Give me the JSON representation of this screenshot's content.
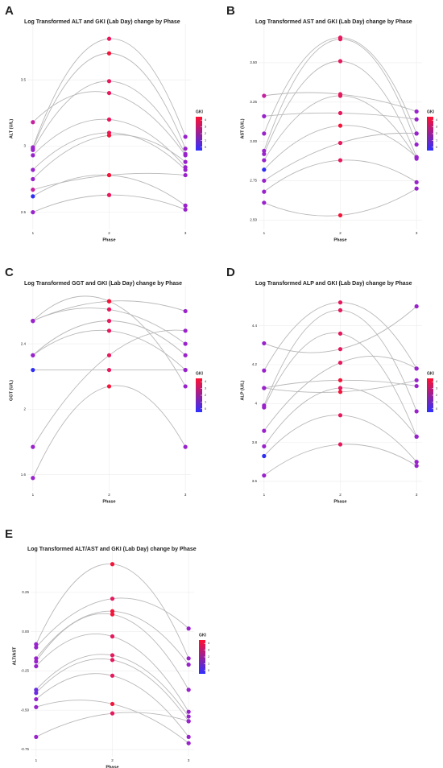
{
  "chart_data": [
    {
      "type": "line",
      "panel": "A",
      "title": "Log Transformed ALT and GKI (Lab Day) change by Phase",
      "x_label": "Phase",
      "y_label": "ALT (U/L)",
      "x": [
        1,
        2,
        3
      ],
      "xlim": [
        0.97,
        3.03
      ],
      "xticks": [
        1,
        2,
        3
      ],
      "ylim": [
        2.37,
        3.89
      ],
      "yticks": [
        2.5,
        3.0,
        3.5
      ],
      "grid": true,
      "colorbar": {
        "title": "GKI",
        "ticks": [
          0,
          1,
          2,
          3,
          4
        ],
        "lim": [
          -0.5,
          4.5
        ],
        "colors": [
          "#3030ff",
          "#ff1030"
        ]
      },
      "series": [
        {
          "values": [
            3.18,
            3.4,
            2.93
          ],
          "colors": [
            "#c61fa0",
            "#e8185e",
            "#9a22cc"
          ]
        },
        {
          "values": [
            2.99,
            3.81,
            3.07
          ],
          "colors": [
            "#9a22cc",
            "#e8185e",
            "#9a22cc"
          ]
        },
        {
          "values": [
            2.98,
            3.7,
            2.98
          ],
          "colors": [
            "#9a22cc",
            "#f5143a",
            "#9a22cc"
          ]
        },
        {
          "values": [
            2.97,
            3.49,
            2.94
          ],
          "colors": [
            "#9a22cc",
            "#e8185e",
            "#9a22cc"
          ]
        },
        {
          "values": [
            2.93,
            3.2,
            2.84
          ],
          "colors": [
            "#9a22cc",
            "#e8185e",
            "#9a22cc"
          ]
        },
        {
          "values": [
            2.82,
            3.1,
            2.82
          ],
          "colors": [
            "#9a22cc",
            "#e8185e",
            "#9a22cc"
          ]
        },
        {
          "values": [
            2.75,
            3.08,
            2.88
          ],
          "colors": [
            "#9a22cc",
            "#f5143a",
            "#9a22cc"
          ]
        },
        {
          "values": [
            2.67,
            2.78,
            2.78
          ],
          "colors": [
            "#c61fa0",
            "#f5143a",
            "#9a22cc"
          ]
        },
        {
          "values": [
            2.62,
            2.78,
            2.55
          ],
          "colors": [
            "#2e2ef5",
            "#f5143a",
            "#9a22cc"
          ]
        },
        {
          "values": [
            2.5,
            2.63,
            2.52
          ],
          "colors": [
            "#9a22cc",
            "#e8185e",
            "#9a22cc"
          ]
        }
      ]
    },
    {
      "type": "line",
      "panel": "B",
      "title": "Log Transformed AST and GKI (Lab Day) change by Phase",
      "x_label": "Phase",
      "y_label": "AST (U/L)",
      "x": [
        1,
        2,
        3
      ],
      "xlim": [
        0.97,
        3.03
      ],
      "xticks": [
        1,
        2,
        3
      ],
      "ylim": [
        2.44,
        3.72
      ],
      "yticks": [
        {
          "value": 2.5,
          "label": "2.50"
        },
        2.75,
        {
          "value": 3.0,
          "label": "3.00"
        },
        3.25,
        {
          "value": 3.5,
          "label": "3.50"
        }
      ],
      "grid": true,
      "colorbar": {
        "title": "GKI",
        "ticks": [
          0,
          1,
          2,
          3,
          4
        ],
        "lim": [
          -0.5,
          4.5
        ],
        "colors": [
          "#3030ff",
          "#ff1030"
        ]
      },
      "series": [
        {
          "values": [
            3.29,
            3.3,
            3.19
          ],
          "colors": [
            "#c61fa0",
            "#e8185e",
            "#9a22cc"
          ]
        },
        {
          "values": [
            3.16,
            3.18,
            3.14
          ],
          "colors": [
            "#9a22cc",
            "#e8185e",
            "#9a22cc"
          ]
        },
        {
          "values": [
            3.05,
            3.66,
            3.05
          ],
          "colors": [
            "#9a22cc",
            "#e8185e",
            "#9a22cc"
          ]
        },
        {
          "values": [
            2.94,
            3.65,
            2.98
          ],
          "colors": [
            "#9a22cc",
            "#e8185e",
            "#9a22cc"
          ]
        },
        {
          "values": [
            2.92,
            3.51,
            2.9
          ],
          "colors": [
            "#9a22cc",
            "#e8185e",
            "#9a22cc"
          ]
        },
        {
          "values": [
            2.88,
            3.29,
            2.89
          ],
          "colors": [
            "#9a22cc",
            "#e8185e",
            "#9a22cc"
          ]
        },
        {
          "values": [
            2.82,
            3.1,
            2.9
          ],
          "colors": [
            "#2e2ef5",
            "#f5143a",
            "#9a22cc"
          ]
        },
        {
          "values": [
            2.75,
            2.99,
            3.05
          ],
          "colors": [
            "#9a22cc",
            "#e8185e",
            "#9a22cc"
          ]
        },
        {
          "values": [
            2.68,
            2.88,
            2.74
          ],
          "colors": [
            "#9a22cc",
            "#e8185e",
            "#9a22cc"
          ]
        },
        {
          "values": [
            2.61,
            2.53,
            2.7
          ],
          "colors": [
            "#9a22cc",
            "#f5143a",
            "#9a22cc"
          ]
        }
      ]
    },
    {
      "type": "line",
      "panel": "C",
      "title": "Log Transformed GGT and GKI (Lab Day) change by Phase",
      "x_label": "Phase",
      "y_label": "GGT (U/L)",
      "x": [
        1,
        2,
        3
      ],
      "xlim": [
        0.97,
        3.03
      ],
      "xticks": [
        1,
        2,
        3
      ],
      "ylim": [
        1.5,
        2.73
      ],
      "yticks": [
        1.6,
        2.0,
        2.4
      ],
      "grid": true,
      "colorbar": {
        "title": "GKI",
        "ticks": [
          0,
          1,
          2,
          3,
          4
        ],
        "lim": [
          -0.5,
          4.5
        ],
        "colors": [
          "#3030ff",
          "#ff1030"
        ]
      },
      "series": [
        {
          "values": [
            2.54,
            2.66,
            2.6
          ],
          "colors": [
            "#9a22cc",
            "#f5143a",
            "#9a22cc"
          ]
        },
        {
          "values": [
            2.54,
            2.61,
            2.4
          ],
          "colors": [
            "#9a22cc",
            "#e8185e",
            "#9a22cc"
          ]
        },
        {
          "values": [
            2.54,
            2.66,
            2.14
          ],
          "colors": [
            "#9a22cc",
            "#f5143a",
            "#9a22cc"
          ]
        },
        {
          "values": [
            2.33,
            2.54,
            2.33
          ],
          "colors": [
            "#9a22cc",
            "#e8185e",
            "#9a22cc"
          ]
        },
        {
          "values": [
            2.33,
            2.48,
            2.24
          ],
          "colors": [
            "#9a22cc",
            "#e8185e",
            "#9a22cc"
          ]
        },
        {
          "values": [
            2.24,
            2.24,
            2.24
          ],
          "colors": [
            "#2e2ef5",
            "#e8185e",
            "#9a22cc"
          ]
        },
        {
          "values": [
            1.77,
            2.33,
            2.48
          ],
          "colors": [
            "#9a22cc",
            "#e8185e",
            "#9a22cc"
          ]
        },
        {
          "values": [
            1.58,
            2.14,
            1.77
          ],
          "colors": [
            "#9a22cc",
            "#f5143a",
            "#9a22cc"
          ]
        }
      ]
    },
    {
      "type": "line",
      "panel": "D",
      "title": "Log Transformed ALP and GKI (Lab Day) change by Phase",
      "x_label": "Phase",
      "y_label": "ALP (U/L)",
      "x": [
        1,
        2,
        3
      ],
      "xlim": [
        0.97,
        3.03
      ],
      "xticks": [
        1,
        2,
        3
      ],
      "ylim": [
        3.55,
        4.585
      ],
      "yticks": [
        3.6,
        3.8,
        4.0,
        4.2,
        4.4
      ],
      "grid": true,
      "colorbar": {
        "title": "GKI",
        "ticks": [
          0,
          1,
          2,
          3,
          4
        ],
        "lim": [
          -0.5,
          4.5
        ],
        "colors": [
          "#3030ff",
          "#ff1030"
        ]
      },
      "series": [
        {
          "values": [
            4.31,
            4.28,
            4.5
          ],
          "colors": [
            "#9a22cc",
            "#e8185e",
            "#9a22cc"
          ]
        },
        {
          "values": [
            4.17,
            4.52,
            4.18
          ],
          "colors": [
            "#9a22cc",
            "#e8185e",
            "#9a22cc"
          ]
        },
        {
          "values": [
            4.08,
            4.12,
            4.09
          ],
          "colors": [
            "#9a22cc",
            "#f5143a",
            "#9a22cc"
          ]
        },
        {
          "values": [
            4.08,
            4.06,
            4.12
          ],
          "colors": [
            "#9a22cc",
            "#f5143a",
            "#9a22cc"
          ]
        },
        {
          "values": [
            3.99,
            4.48,
            3.96
          ],
          "colors": [
            "#9a22cc",
            "#e8185e",
            "#9a22cc"
          ]
        },
        {
          "values": [
            3.98,
            4.36,
            3.83
          ],
          "colors": [
            "#9a22cc",
            "#e8185e",
            "#9a22cc"
          ]
        },
        {
          "values": [
            3.86,
            4.21,
            4.18
          ],
          "colors": [
            "#9a22cc",
            "#e8185e",
            "#9a22cc"
          ]
        },
        {
          "values": [
            3.78,
            4.08,
            3.83
          ],
          "colors": [
            "#9a22cc",
            "#e8185e",
            "#9a22cc"
          ]
        },
        {
          "values": [
            3.73,
            3.94,
            3.7
          ],
          "colors": [
            "#2e2ef5",
            "#e8185e",
            "#9a22cc"
          ]
        },
        {
          "values": [
            3.63,
            3.79,
            3.68
          ],
          "colors": [
            "#9a22cc",
            "#e8185e",
            "#9a22cc"
          ]
        }
      ]
    },
    {
      "type": "line",
      "panel": "E",
      "title": "Log Transformed ALT/AST and GKI (Lab Day) change by Phase",
      "x_label": "Phase",
      "y_label": "ALT/AST",
      "x": [
        1,
        2,
        3
      ],
      "xlim": [
        0.97,
        3.03
      ],
      "xticks": [
        1,
        2,
        3
      ],
      "ylim": [
        -0.796,
        0.485
      ],
      "yticks": [
        -0.75,
        {
          "value": -0.5,
          "label": "-0.50"
        },
        -0.25,
        {
          "value": 0,
          "label": "0.00"
        },
        0.25
      ],
      "grid": true,
      "colorbar": {
        "title": "GKI",
        "ticks": [
          0,
          1,
          2,
          3,
          4
        ],
        "lim": [
          -0.5,
          4.5
        ],
        "colors": [
          "#3030ff",
          "#ff1030"
        ]
      },
      "series": [
        {
          "values": [
            -0.08,
            0.43,
            -0.17
          ],
          "colors": [
            "#9a22cc",
            "#f5143a",
            "#9a22cc"
          ]
        },
        {
          "values": [
            -0.1,
            0.21,
            0.02
          ],
          "colors": [
            "#9a22cc",
            "#e8185e",
            "#9a22cc"
          ]
        },
        {
          "values": [
            -0.17,
            0.13,
            -0.21
          ],
          "colors": [
            "#9a22cc",
            "#f5143a",
            "#9a22cc"
          ]
        },
        {
          "values": [
            -0.19,
            0.11,
            -0.37
          ],
          "colors": [
            "#9a22cc",
            "#f5143a",
            "#9a22cc"
          ]
        },
        {
          "values": [
            -0.22,
            -0.03,
            -0.51
          ],
          "colors": [
            "#9a22cc",
            "#e8185e",
            "#9a22cc"
          ]
        },
        {
          "values": [
            -0.37,
            -0.15,
            -0.54
          ],
          "colors": [
            "#6b2be0",
            "#e8185e",
            "#9a22cc"
          ]
        },
        {
          "values": [
            -0.39,
            -0.18,
            -0.57
          ],
          "colors": [
            "#6b2be0",
            "#e8185e",
            "#9a22cc"
          ]
        },
        {
          "values": [
            -0.43,
            -0.28,
            -0.67
          ],
          "colors": [
            "#9a22cc",
            "#e8185e",
            "#9a22cc"
          ]
        },
        {
          "values": [
            -0.48,
            -0.46,
            -0.71
          ],
          "colors": [
            "#9a22cc",
            "#f5143a",
            "#9a22cc"
          ]
        },
        {
          "values": [
            -0.67,
            -0.52,
            -0.57
          ],
          "colors": [
            "#9a22cc",
            "#e8185e",
            "#9a22cc"
          ]
        }
      ]
    }
  ]
}
